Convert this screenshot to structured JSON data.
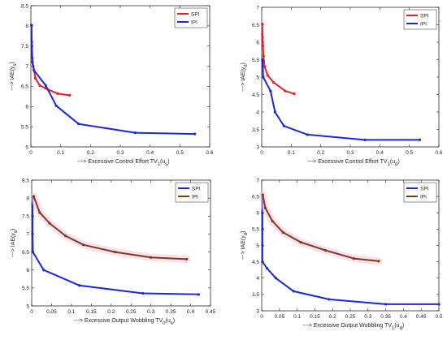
{
  "chart_data": [
    {
      "type": "line",
      "xlabel": "---> Excessive Control Effort TV",
      "xlabel_sub": "1",
      "xlabel_tail": "(u",
      "xlabel_tail_sub": "s",
      "xlabel_close": ")",
      "ylabel": "---> IAE(y",
      "ylabel_sub": "s",
      "ylabel_close": ")",
      "xlim": [
        0,
        0.6
      ],
      "ylim": [
        5,
        8.5
      ],
      "xticks": [
        "0",
        "0.1",
        "0.2",
        "0.3",
        "0.4",
        "0.5",
        "0.6"
      ],
      "yticks": [
        "5",
        "5.5",
        "6",
        "6.5",
        "7",
        "7.5",
        "8",
        "8.5"
      ],
      "grid": false,
      "legend_position": "top-right",
      "series": [
        {
          "name": "SPI",
          "color": "#ee1c24",
          "shaded": false,
          "x": [
            0.002,
            0.003,
            0.005,
            0.008,
            0.015,
            0.03,
            0.05,
            0.09,
            0.13
          ],
          "y": [
            8.0,
            7.6,
            7.2,
            7.0,
            6.7,
            6.52,
            6.45,
            6.32,
            6.28
          ]
        },
        {
          "name": "IPI",
          "color": "#1a2ad6",
          "shaded": false,
          "x": [
            0.002,
            0.003,
            0.005,
            0.01,
            0.05,
            0.085,
            0.16,
            0.35,
            0.55
          ],
          "y": [
            8.02,
            7.5,
            7.1,
            6.9,
            6.52,
            6.02,
            5.57,
            5.35,
            5.32
          ]
        }
      ]
    },
    {
      "type": "line",
      "xlabel": "---> Excessive Control Effort TV",
      "xlabel_sub": "1",
      "xlabel_tail": "(u",
      "xlabel_tail_sub": "d",
      "xlabel_close": ")",
      "ylabel": "---> IAE(y",
      "ylabel_sub": "d",
      "ylabel_close": ")",
      "xlim": [
        0,
        0.6
      ],
      "ylim": [
        3,
        7
      ],
      "xticks": [
        "0",
        "0.1",
        "0.2",
        "0.3",
        "0.4",
        "0.5",
        "0.6"
      ],
      "yticks": [
        "3",
        "3.5",
        "4",
        "4.5",
        "5",
        "5.5",
        "6",
        "6.5",
        "7"
      ],
      "grid": false,
      "legend_position": "top-right",
      "series": [
        {
          "name": "SPI",
          "color": "#ee1c24",
          "shaded": false,
          "x": [
            0.002,
            0.003,
            0.004,
            0.006,
            0.01,
            0.02,
            0.04,
            0.08,
            0.11
          ],
          "y": [
            6.52,
            6.15,
            5.9,
            5.6,
            5.3,
            5.05,
            4.85,
            4.6,
            4.52
          ]
        },
        {
          "name": "IPI",
          "color": "#1a2ad6",
          "shaded": false,
          "x": [
            0.002,
            0.003,
            0.005,
            0.03,
            0.045,
            0.075,
            0.155,
            0.35,
            0.535
          ],
          "y": [
            5.5,
            5.45,
            5.0,
            4.6,
            4.0,
            3.6,
            3.35,
            3.2,
            3.2
          ]
        }
      ]
    },
    {
      "type": "line",
      "xlabel": "---> Excessive Output Wobbling TV",
      "xlabel_sub": "0",
      "xlabel_tail": "(u",
      "xlabel_tail_sub": "s",
      "xlabel_close": ")",
      "ylabel": "---> IAE(y",
      "ylabel_sub": "s",
      "ylabel_close": ")",
      "xlim": [
        0,
        0.45
      ],
      "ylim": [
        5,
        8.5
      ],
      "xticks": [
        "0",
        "0.05",
        "0.1",
        "0.15",
        "0.2",
        "0.25",
        "0.3",
        "0.35",
        "0.4",
        "0.45"
      ],
      "yticks": [
        "5",
        "5.5",
        "6",
        "6.5",
        "7",
        "7.5",
        "8",
        "8.5"
      ],
      "grid": false,
      "legend_position": "top-right",
      "series": [
        {
          "name": "SPI",
          "color": "#1a2ad6",
          "shaded": false,
          "x": [
            0.002,
            0.002,
            0.002,
            0.003,
            0.03,
            0.12,
            0.28,
            0.42
          ],
          "y": [
            8.02,
            7.5,
            7.0,
            6.5,
            6.0,
            5.57,
            5.35,
            5.32
          ]
        },
        {
          "name": "IPI",
          "color": "#7b3f10",
          "shaded": true,
          "x": [
            0.005,
            0.02,
            0.045,
            0.085,
            0.13,
            0.21,
            0.3,
            0.39
          ],
          "y": [
            8.05,
            7.6,
            7.3,
            6.95,
            6.7,
            6.5,
            6.35,
            6.3
          ]
        }
      ]
    },
    {
      "type": "line",
      "xlabel": "---> Excessive Output Wobbling TV",
      "xlabel_sub": "1",
      "xlabel_tail": "(u",
      "xlabel_tail_sub": "d",
      "xlabel_close": ")",
      "ylabel": "---> IAE(y",
      "ylabel_sub": "d",
      "ylabel_close": ")",
      "xlim": [
        0,
        0.5
      ],
      "ylim": [
        3,
        7
      ],
      "xticks": [
        "0",
        "0.05",
        "0.1",
        "0.15",
        "0.2",
        "0.25",
        "0.3",
        "0.35",
        "0.4",
        "0.45",
        "0.5"
      ],
      "yticks": [
        "3",
        "3.5",
        "4",
        "4.5",
        "5",
        "5.5",
        "6",
        "6.5",
        "7"
      ],
      "grid": false,
      "legend_position": "top-right",
      "series": [
        {
          "name": "SPI",
          "color": "#1a2ad6",
          "shaded": false,
          "x": [
            0.002,
            0.002,
            0.002,
            0.002,
            0.002,
            0.015,
            0.04,
            0.09,
            0.19,
            0.35,
            0.5
          ],
          "y": [
            6.5,
            6.0,
            5.5,
            5.0,
            4.5,
            4.3,
            4.0,
            3.6,
            3.35,
            3.2,
            3.2
          ]
        },
        {
          "name": "IPI",
          "color": "#7b3f10",
          "shaded": true,
          "x": [
            0.003,
            0.01,
            0.03,
            0.06,
            0.11,
            0.18,
            0.26,
            0.33
          ],
          "y": [
            6.55,
            6.15,
            5.75,
            5.4,
            5.1,
            4.85,
            4.6,
            4.52
          ]
        }
      ]
    }
  ]
}
